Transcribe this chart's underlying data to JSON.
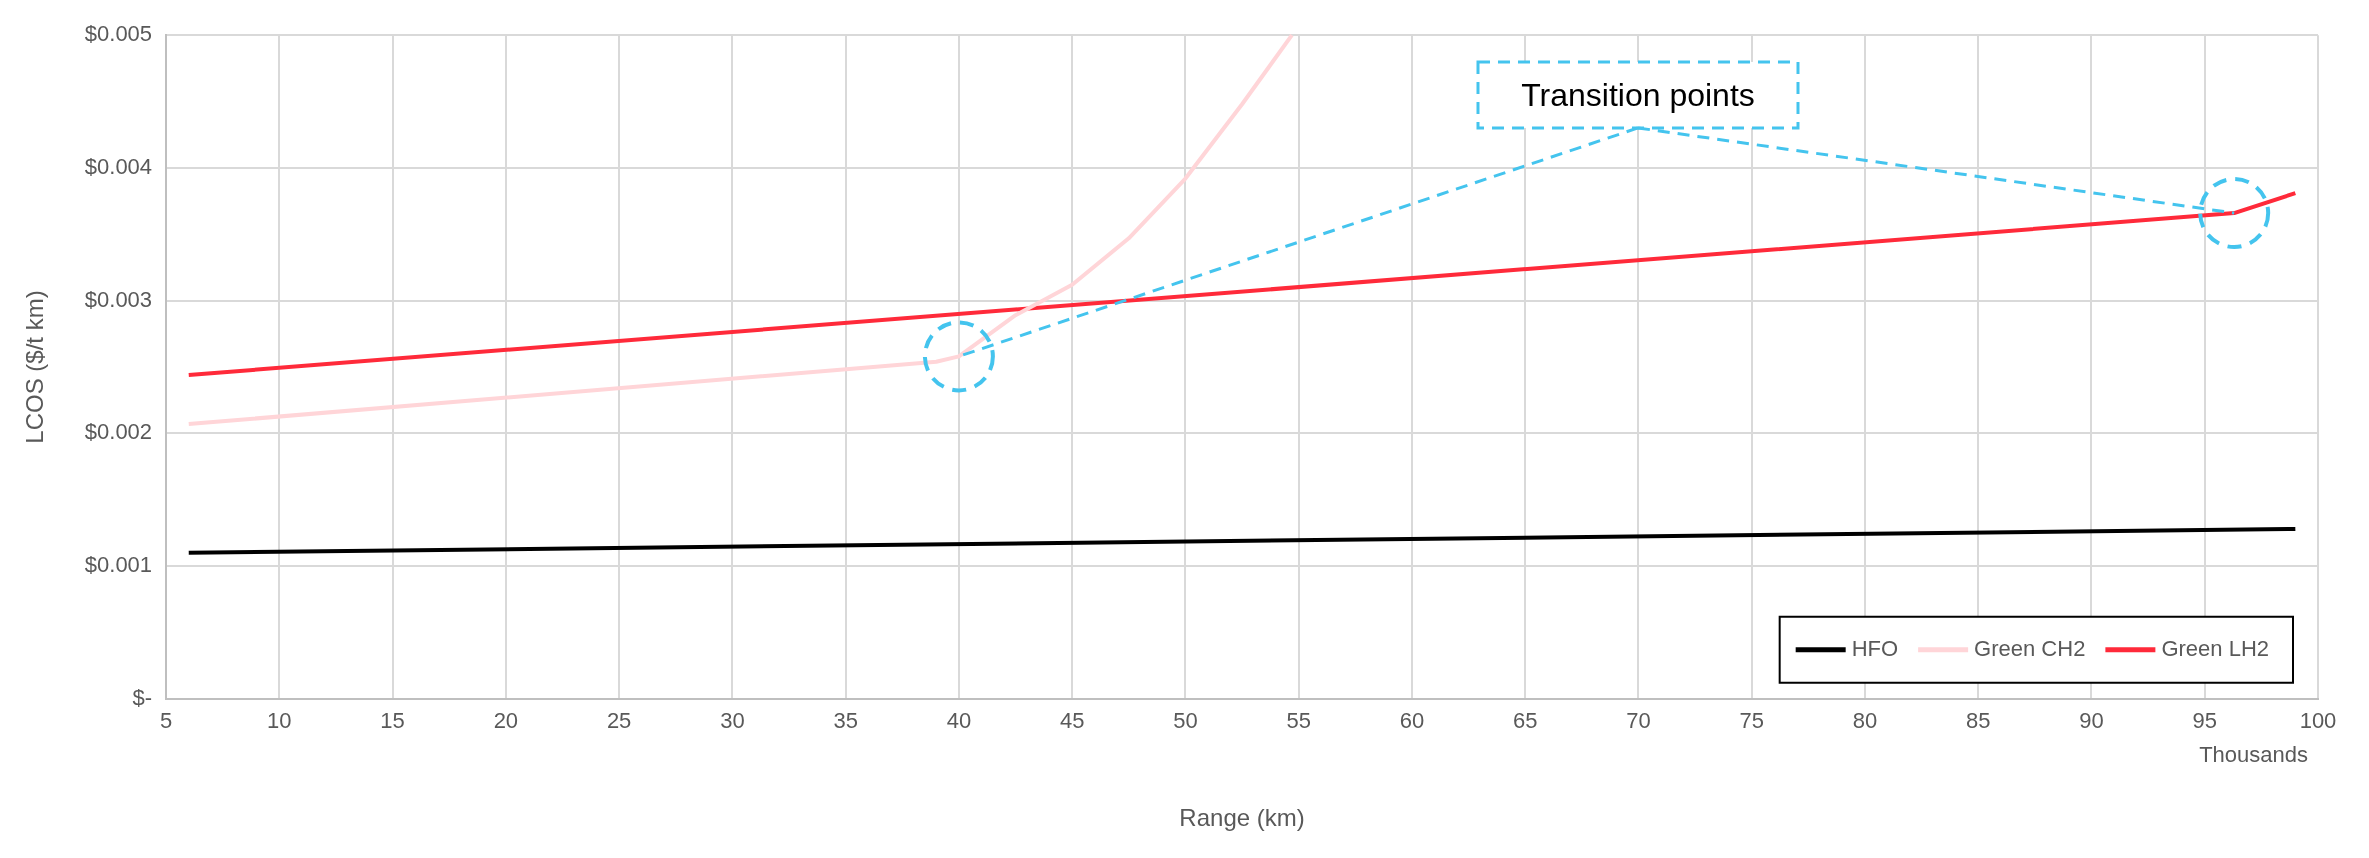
{
  "chart_data": {
    "type": "line",
    "xlabel": "Range (km)",
    "ylabel": "LCOS ($/t km)",
    "xlim": [
      5,
      100
    ],
    "xticks": [
      5,
      10,
      15,
      20,
      25,
      30,
      35,
      40,
      45,
      50,
      55,
      60,
      65,
      70,
      75,
      80,
      85,
      90,
      95,
      100
    ],
    "ylim": [
      0,
      0.005
    ],
    "yticks": [
      {
        "value": 0,
        "label": "$-"
      },
      {
        "value": 0.001,
        "label": "$0.001"
      },
      {
        "value": 0.002,
        "label": "$0.002"
      },
      {
        "value": 0.003,
        "label": "$0.003"
      },
      {
        "value": 0.004,
        "label": "$0.004"
      },
      {
        "value": 0.005,
        "label": "$0.005"
      }
    ],
    "series": [
      {
        "name": "HFO",
        "color": "#000000",
        "x": [
          6,
          99
        ],
        "values": [
          0.0011,
          0.00128
        ]
      },
      {
        "name": "Green CH2",
        "color": "#ffd5d8",
        "x": [
          6,
          39,
          40,
          42.5,
          45,
          47.5,
          50,
          52.5,
          54.7
        ],
        "values": [
          0.00207,
          0.00254,
          0.00258,
          0.00289,
          0.00312,
          0.00347,
          0.00392,
          0.00448,
          0.005
        ]
      },
      {
        "name": "Green LH2",
        "color": "#ff2a3a",
        "x": [
          6,
          96.3,
          99
        ],
        "values": [
          0.00244,
          0.00366,
          0.00381
        ]
      }
    ],
    "annotations": [
      {
        "text": "Transition points",
        "x": 96.3,
        "y": 0.00366
      },
      "Thousands"
    ],
    "grid": true,
    "legend": "bottom right",
    "marker": "none",
    "line_style": "solid"
  }
}
